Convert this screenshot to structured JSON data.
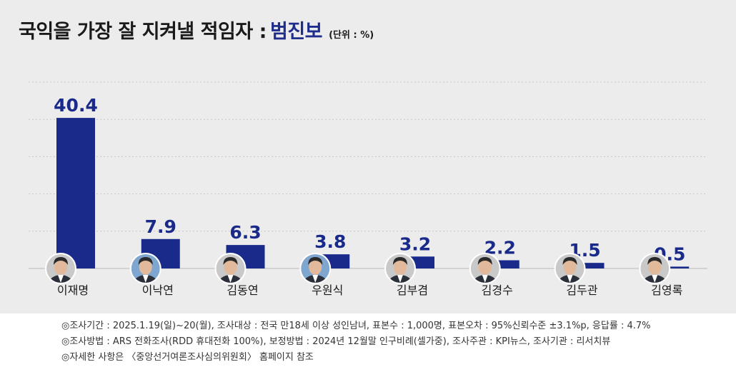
{
  "title": {
    "main": "국익을 가장 잘 지켜낼 적임자 :",
    "accent": "범진보",
    "unit": "(단위 : %)"
  },
  "colors": {
    "bar": "#1a2a8a",
    "value_text": "#1a2a8a",
    "title_accent": "#1f2e8c",
    "background": "#ececec",
    "gridline": "#c8c8c8"
  },
  "chart_data": {
    "type": "bar",
    "categories": [
      "이재명",
      "이낙연",
      "김동연",
      "우원식",
      "김부겸",
      "김경수",
      "김두관",
      "김영록"
    ],
    "values": [
      40.4,
      7.9,
      6.3,
      3.8,
      3.2,
      2.2,
      1.5,
      0.5
    ],
    "value_labels": [
      "40.4",
      "7.9",
      "6.3",
      "3.8",
      "3.2",
      "2.2",
      "1.5",
      "0.5"
    ],
    "icons": [
      "portrait-photo",
      "portrait-photo",
      "portrait-photo",
      "portrait-photo",
      "portrait-photo",
      "portrait-photo",
      "portrait-photo",
      "portrait-photo"
    ],
    "ylim": [
      0,
      50
    ],
    "grid": true
  },
  "footer": {
    "lines": [
      "◎조사기간 : 2025.1.19(일)~20(월), 조사대상 : 전국 만18세 이상 성인남녀, 표본수 : 1,000명, 표본오차 : 95%신뢰수준 ±3.1%p, 응답률 : 4.7%",
      "◎조사방법 : ARS 전화조사(RDD 휴대전화 100%), 보정방법 : 2024년 12월말 인구비례(셀가중), 조사주관 : KPI뉴스, 조사기관 : 리서치뷰",
      "◎자세한 사항은 〈중앙선거여론조사심의위원회〉 홈페이지 참조"
    ]
  }
}
